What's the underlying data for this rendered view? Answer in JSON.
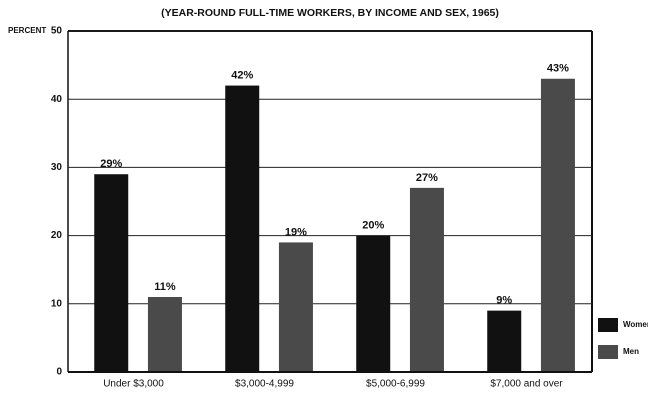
{
  "chart_data": {
    "type": "bar",
    "title": "(YEAR-ROUND FULL-TIME WORKERS, BY INCOME AND SEX, 1965)",
    "y_label": "PERCENT",
    "categories": [
      "Under $3,000",
      "$3,000-4,999",
      "$5,000-6,999",
      "$7,000 and over"
    ],
    "series": [
      {
        "name": "Women",
        "color": "#111111",
        "values": [
          29,
          42,
          20,
          9
        ],
        "value_labels": [
          "29%",
          "42%",
          "20%",
          "9%"
        ]
      },
      {
        "name": "Men",
        "color": "#4a4a4a",
        "values": [
          11,
          19,
          27,
          43
        ],
        "value_labels": [
          "11%",
          "19%",
          "27%",
          "43%"
        ]
      }
    ],
    "ylim": [
      0,
      50
    ],
    "yticks": [
      0,
      10,
      20,
      30,
      40,
      50
    ],
    "grid": true,
    "legend": "lower right"
  }
}
